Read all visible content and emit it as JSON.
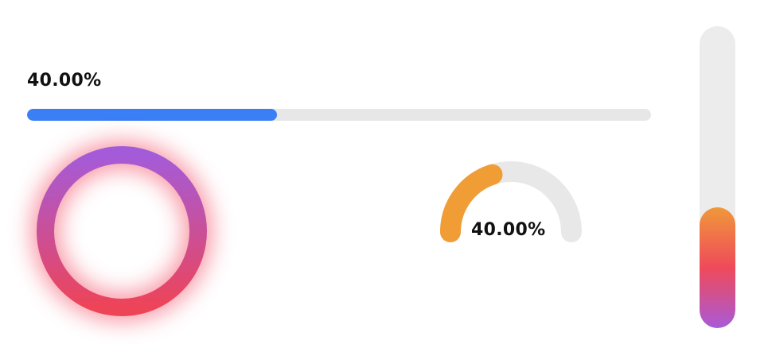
{
  "linear_progress": {
    "label": "40.00%",
    "value": 0.4,
    "fill_color": "#3a7ff5",
    "track_color": "#e7e7e7"
  },
  "ring_progress": {
    "gradient_start": "#a45bd9",
    "gradient_end": "#ee4458",
    "glow_color": "#f23b55"
  },
  "gauge_progress": {
    "label": "40.00%",
    "value": 0.4,
    "fill_color": "#f19d36",
    "track_color": "#e8e8e8"
  },
  "vertical_progress": {
    "value": 0.4,
    "track_color": "#ececec",
    "gradient": [
      "#f0983a",
      "#ef4a5a",
      "#a95ad8"
    ]
  }
}
